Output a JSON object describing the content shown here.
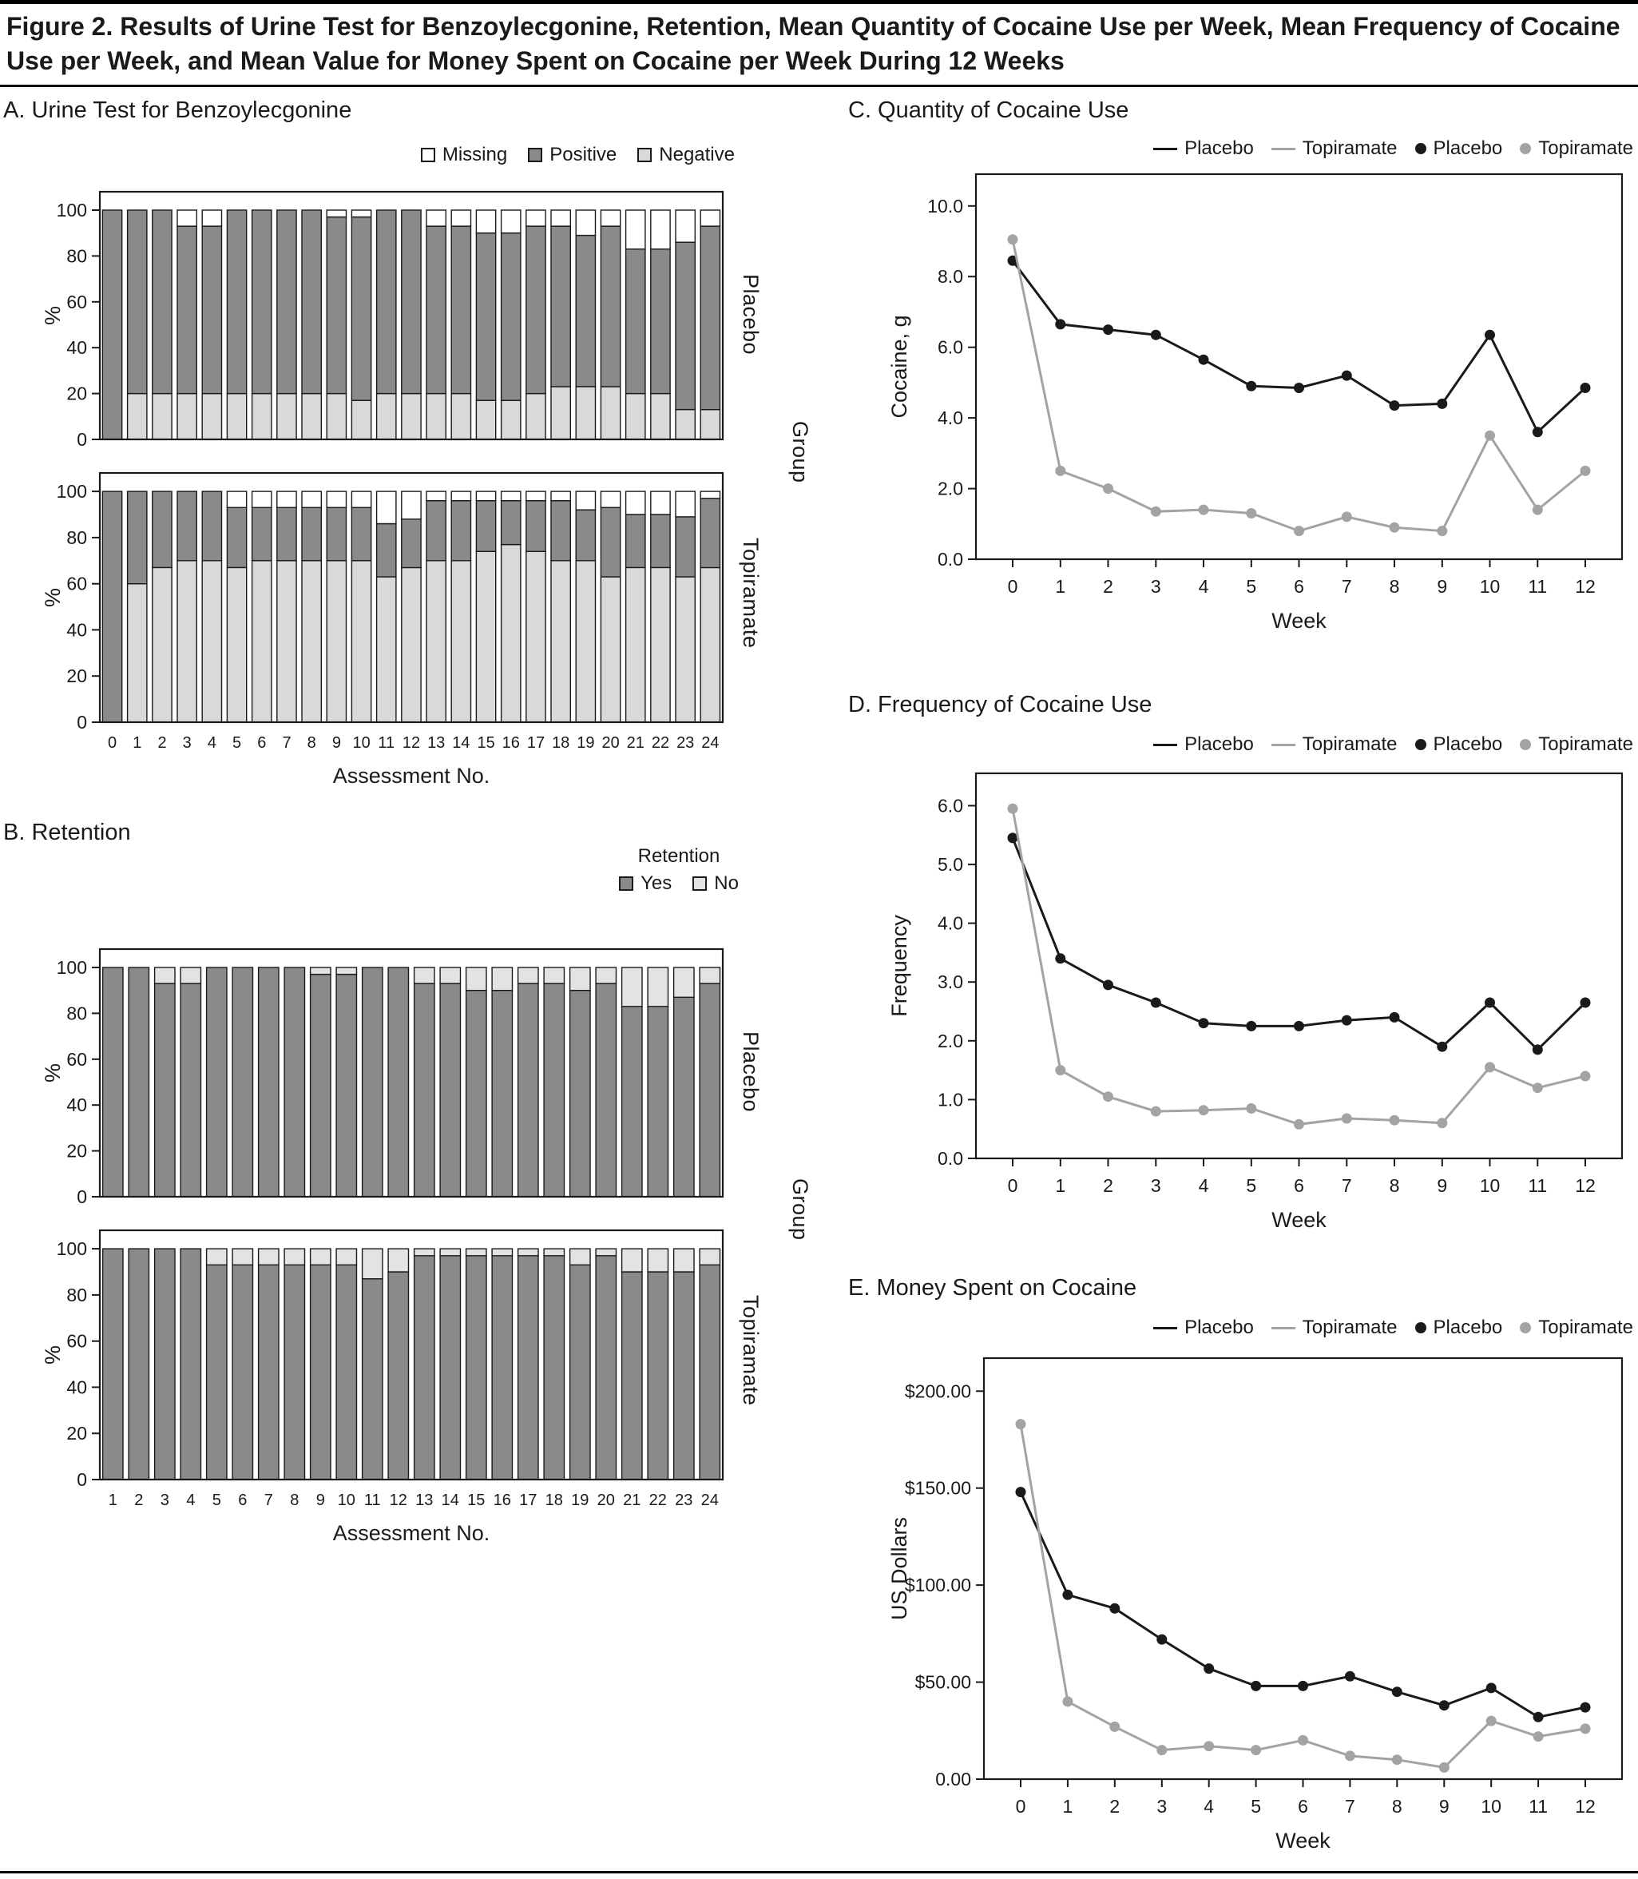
{
  "figure": {
    "title": "Figure 2. Results of Urine Test for Benzoylecgonine, Retention, Mean Quantity of Cocaine Use per Week, Mean Frequency of Cocaine Use per Week, and Mean Value for Money Spent on Cocaine per Week During 12 Weeks"
  },
  "colors": {
    "positive_dark_gray": "#8a8a8a",
    "negative_light_gray": "#d9d9d9",
    "missing_white": "#ffffff",
    "retention_yes": "#8a8a8a",
    "retention_no": "#e3e3e3",
    "placebo_line": "#1a1a1a",
    "topiramate_line": "#a3a3a3"
  },
  "line_legend": [
    "Placebo",
    "Topiramate",
    "Placebo",
    "Topiramate"
  ],
  "panels": {
    "a": {
      "heading": "A. Urine Test for Benzoylecgonine",
      "legend": [
        {
          "label": "Missing"
        },
        {
          "label": "Positive"
        },
        {
          "label": "Negative"
        }
      ],
      "ylabel": "%",
      "xlabel": "Assessment No.",
      "group_labels": {
        "top": "Placebo",
        "bottom": "Topiramate",
        "axis": "Group"
      }
    },
    "b": {
      "heading": "B. Retention",
      "legend_title": "Retention",
      "legend": [
        {
          "label": "Yes"
        },
        {
          "label": "No"
        }
      ],
      "ylabel": "%",
      "xlabel": "Assessment No.",
      "group_labels": {
        "top": "Placebo",
        "bottom": "Topiramate",
        "axis": "Group"
      }
    },
    "c": {
      "heading": "C. Quantity of Cocaine Use"
    },
    "d": {
      "heading": "D. Frequency of Cocaine Use"
    },
    "e": {
      "heading": "E. Money Spent on Cocaine"
    }
  },
  "chart_data": [
    {
      "id": "urine_placebo",
      "type": "stacked_bar",
      "title": "Urine Test for Benzoylecgonine - Placebo",
      "categories": [
        0,
        1,
        2,
        3,
        4,
        5,
        6,
        7,
        8,
        9,
        10,
        11,
        12,
        13,
        14,
        15,
        16,
        17,
        18,
        19,
        20,
        21,
        22,
        23,
        24
      ],
      "series": [
        {
          "name": "Negative",
          "color": "#d9d9d9",
          "values": [
            0,
            20,
            20,
            20,
            20,
            20,
            20,
            20,
            20,
            20,
            17,
            20,
            20,
            20,
            20,
            17,
            17,
            20,
            23,
            23,
            23,
            20,
            20,
            13,
            13
          ]
        },
        {
          "name": "Positive",
          "color": "#8a8a8a",
          "values": [
            100,
            80,
            80,
            73,
            73,
            80,
            80,
            80,
            80,
            77,
            80,
            80,
            80,
            73,
            73,
            73,
            73,
            73,
            70,
            66,
            70,
            63,
            63,
            73,
            80
          ]
        },
        {
          "name": "Missing",
          "color": "#ffffff",
          "values": [
            0,
            0,
            0,
            7,
            7,
            0,
            0,
            0,
            0,
            3,
            3,
            0,
            0,
            7,
            7,
            10,
            10,
            7,
            7,
            11,
            7,
            17,
            17,
            14,
            7
          ]
        }
      ],
      "ylabel": "%",
      "ylim": [
        0,
        100
      ],
      "ylim_display": 108,
      "yticks": [
        0,
        20,
        40,
        60,
        80,
        100
      ],
      "show_xticks": false,
      "right_label": "Placebo"
    },
    {
      "id": "urine_topiramate",
      "type": "stacked_bar",
      "title": "Urine Test for Benzoylecgonine - Topiramate",
      "categories": [
        0,
        1,
        2,
        3,
        4,
        5,
        6,
        7,
        8,
        9,
        10,
        11,
        12,
        13,
        14,
        15,
        16,
        17,
        18,
        19,
        20,
        21,
        22,
        23,
        24
      ],
      "series": [
        {
          "name": "Negative",
          "color": "#d9d9d9",
          "values": [
            0,
            60,
            67,
            70,
            70,
            67,
            70,
            70,
            70,
            70,
            70,
            63,
            67,
            70,
            70,
            74,
            77,
            74,
            70,
            70,
            63,
            67,
            67,
            63,
            67
          ]
        },
        {
          "name": "Positive",
          "color": "#8a8a8a",
          "values": [
            100,
            40,
            33,
            30,
            30,
            26,
            23,
            23,
            23,
            23,
            23,
            23,
            21,
            26,
            26,
            22,
            19,
            22,
            26,
            22,
            30,
            23,
            23,
            26,
            30
          ]
        },
        {
          "name": "Missing",
          "color": "#ffffff",
          "values": [
            0,
            0,
            0,
            0,
            0,
            7,
            7,
            7,
            7,
            7,
            7,
            14,
            12,
            4,
            4,
            4,
            4,
            4,
            4,
            8,
            7,
            10,
            10,
            11,
            3
          ]
        }
      ],
      "ylabel": "%",
      "xlabel": "Assessment No.",
      "ylim": [
        0,
        100
      ],
      "ylim_display": 108,
      "yticks": [
        0,
        20,
        40,
        60,
        80,
        100
      ],
      "show_xticks": true,
      "right_label": "Topiramate"
    },
    {
      "id": "retention_placebo",
      "type": "stacked_bar",
      "title": "Retention - Placebo",
      "categories": [
        1,
        2,
        3,
        4,
        5,
        6,
        7,
        8,
        9,
        10,
        11,
        12,
        13,
        14,
        15,
        16,
        17,
        18,
        19,
        20,
        21,
        22,
        23,
        24
      ],
      "series": [
        {
          "name": "Yes",
          "color": "#8a8a8a",
          "values": [
            100,
            100,
            93,
            93,
            100,
            100,
            100,
            100,
            97,
            97,
            100,
            100,
            93,
            93,
            90,
            90,
            93,
            93,
            90,
            93,
            83,
            83,
            87,
            93
          ]
        },
        {
          "name": "No",
          "color": "#e3e3e3",
          "values": [
            0,
            0,
            7,
            7,
            0,
            0,
            0,
            0,
            3,
            3,
            0,
            0,
            7,
            7,
            10,
            10,
            7,
            7,
            10,
            7,
            17,
            17,
            13,
            7
          ]
        }
      ],
      "ylabel": "%",
      "ylim": [
        0,
        100
      ],
      "ylim_display": 108,
      "yticks": [
        0,
        20,
        40,
        60,
        80,
        100
      ],
      "show_xticks": false,
      "right_label": "Placebo"
    },
    {
      "id": "retention_topiramate",
      "type": "stacked_bar",
      "title": "Retention - Topiramate",
      "categories": [
        1,
        2,
        3,
        4,
        5,
        6,
        7,
        8,
        9,
        10,
        11,
        12,
        13,
        14,
        15,
        16,
        17,
        18,
        19,
        20,
        21,
        22,
        23,
        24
      ],
      "series": [
        {
          "name": "Yes",
          "color": "#8a8a8a",
          "values": [
            100,
            100,
            100,
            100,
            93,
            93,
            93,
            93,
            93,
            93,
            87,
            90,
            97,
            97,
            97,
            97,
            97,
            97,
            93,
            97,
            90,
            90,
            90,
            93
          ]
        },
        {
          "name": "No",
          "color": "#e3e3e3",
          "values": [
            0,
            0,
            0,
            0,
            7,
            7,
            7,
            7,
            7,
            7,
            13,
            10,
            3,
            3,
            3,
            3,
            3,
            3,
            7,
            3,
            10,
            10,
            10,
            7
          ]
        }
      ],
      "ylabel": "%",
      "xlabel": "Assessment No.",
      "ylim": [
        0,
        100
      ],
      "ylim_display": 108,
      "yticks": [
        0,
        20,
        40,
        60,
        80,
        100
      ],
      "show_xticks": true,
      "right_label": "Topiramate"
    },
    {
      "id": "quantity",
      "type": "line",
      "title": "Quantity of Cocaine Use",
      "x": [
        0,
        1,
        2,
        3,
        4,
        5,
        6,
        7,
        8,
        9,
        10,
        11,
        12
      ],
      "series": [
        {
          "name": "Placebo",
          "color": "#1a1a1a",
          "values": [
            8.45,
            6.65,
            6.5,
            6.35,
            5.65,
            4.9,
            4.85,
            5.2,
            4.35,
            4.4,
            6.35,
            3.6,
            4.85
          ]
        },
        {
          "name": "Topiramate",
          "color": "#a3a3a3",
          "values": [
            9.05,
            2.5,
            2.0,
            1.35,
            1.4,
            1.3,
            0.8,
            1.2,
            0.9,
            0.8,
            3.5,
            1.4,
            2.5
          ]
        }
      ],
      "ylabel": "Cocaine, g",
      "xlabel": "Week",
      "ylim": [
        0,
        10
      ],
      "ylim_display": 10.9,
      "yticks": [
        0,
        2,
        4,
        6,
        8,
        10
      ],
      "ytick_labels": [
        "0.0",
        "2.0",
        "4.0",
        "6.0",
        "8.0",
        "10.0"
      ],
      "legend_position": "top-right"
    },
    {
      "id": "frequency",
      "type": "line",
      "title": "Frequency of Cocaine Use",
      "x": [
        0,
        1,
        2,
        3,
        4,
        5,
        6,
        7,
        8,
        9,
        10,
        11,
        12
      ],
      "series": [
        {
          "name": "Placebo",
          "color": "#1a1a1a",
          "values": [
            5.45,
            3.4,
            2.95,
            2.65,
            2.3,
            2.25,
            2.25,
            2.35,
            2.4,
            1.9,
            2.65,
            1.85,
            2.65
          ]
        },
        {
          "name": "Topiramate",
          "color": "#a3a3a3",
          "values": [
            5.95,
            1.5,
            1.05,
            0.8,
            0.82,
            0.85,
            0.58,
            0.68,
            0.65,
            0.6,
            1.55,
            1.2,
            1.4
          ]
        }
      ],
      "ylabel": "Frequency",
      "xlabel": "Week",
      "ylim": [
        0,
        6
      ],
      "ylim_display": 6.55,
      "yticks": [
        0,
        1,
        2,
        3,
        4,
        5,
        6
      ],
      "ytick_labels": [
        "0.0",
        "1.0",
        "2.0",
        "3.0",
        "4.0",
        "5.0",
        "6.0"
      ],
      "legend_position": "top-right"
    },
    {
      "id": "money",
      "type": "line",
      "title": "Money Spent on Cocaine",
      "x": [
        0,
        1,
        2,
        3,
        4,
        5,
        6,
        7,
        8,
        9,
        10,
        11,
        12
      ],
      "series": [
        {
          "name": "Placebo",
          "color": "#1a1a1a",
          "values": [
            148,
            95,
            88,
            72,
            57,
            48,
            48,
            53,
            45,
            38,
            47,
            32,
            37
          ]
        },
        {
          "name": "Topiramate",
          "color": "#a3a3a3",
          "values": [
            183,
            40,
            27,
            15,
            17,
            15,
            20,
            12,
            10,
            6,
            30,
            22,
            26
          ]
        }
      ],
      "ylabel": "US Dollars",
      "xlabel": "Week",
      "ylim": [
        0,
        200
      ],
      "ylim_display": 217,
      "yticks": [
        0,
        50,
        100,
        150,
        200
      ],
      "ytick_labels": [
        "0.00",
        "$50.00",
        "$100.00",
        "$150.00",
        "$200.00"
      ],
      "legend_position": "top-right"
    }
  ]
}
